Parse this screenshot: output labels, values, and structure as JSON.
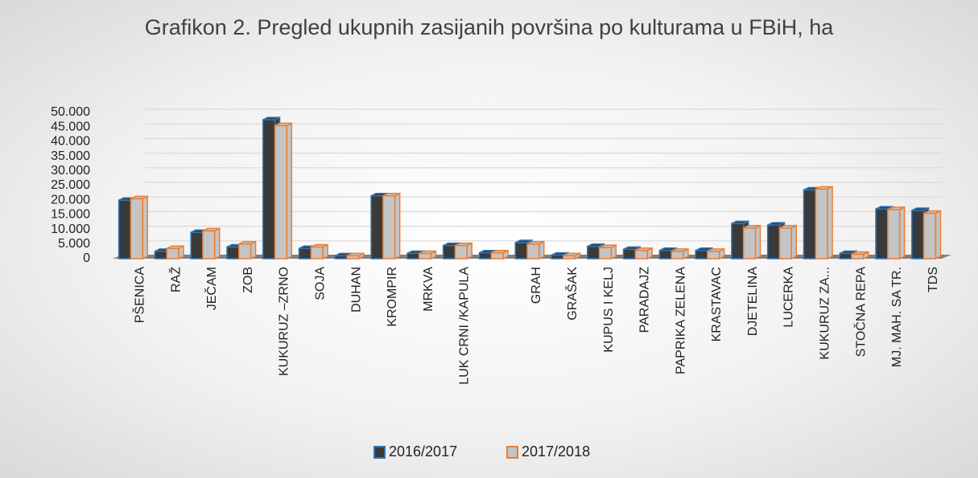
{
  "chart_data": {
    "type": "bar3d",
    "title": "Grafikon 2. Pregled ukupnih zasijanih površina po kulturama u FBiH, ha",
    "categories": [
      "PŠENICA",
      "RAŽ",
      "JEČAM",
      "ZOB",
      "KUKURUZ –ZRNO",
      "SOJA",
      "DUHAN",
      "KROMPIR",
      "MRKVA",
      "LUK CRNI /KAPULA",
      null,
      "GRAH",
      "GRAŠAK",
      "KUPUS I KELJ",
      "PARADAJZ",
      "PAPRIKA ZELENA",
      "KRASTAVAC",
      "DJETELINA",
      "LUCERKA",
      "KUKURUZ ZA...",
      "STOČNA REPA",
      "MJ. MAH. SA TR.",
      "TDS"
    ],
    "series": [
      {
        "name": "2016/2017",
        "color": "#3a3a3a",
        "edge": "#2e75b6",
        "values": [
          20000,
          2500,
          9000,
          4000,
          47500,
          3500,
          1000,
          21500,
          1800,
          4500,
          2000,
          5500,
          1200,
          4200,
          3200,
          2800,
          2800,
          12000,
          11500,
          23500,
          1800,
          17000,
          16500
        ]
      },
      {
        "name": "2017/2018",
        "color": "#c4c4c4",
        "edge": "#ed7d31",
        "values": [
          20500,
          3500,
          9500,
          5000,
          45500,
          4000,
          1000,
          21500,
          1800,
          4500,
          2000,
          5000,
          1000,
          3800,
          2800,
          2500,
          2500,
          10500,
          10500,
          23800,
          1500,
          16800,
          15500
        ]
      }
    ],
    "ylim": [
      0,
      50000
    ],
    "yticks": [
      0,
      {
        "value": 5000,
        "label": "5.000"
      },
      {
        "value": 10000,
        "label": "10.000"
      },
      {
        "value": 15000,
        "label": "15.000"
      },
      {
        "value": 20000,
        "label": "20.000"
      },
      {
        "value": 25000,
        "label": "25.000"
      },
      {
        "value": 30000,
        "label": "30.000"
      },
      {
        "value": 35000,
        "label": "35.000"
      },
      {
        "value": 40000,
        "label": "40.000"
      },
      {
        "value": 45000,
        "label": "45.000"
      },
      {
        "value": 50000,
        "label": "50.000"
      }
    ],
    "grid": true,
    "legend": "bottom"
  }
}
